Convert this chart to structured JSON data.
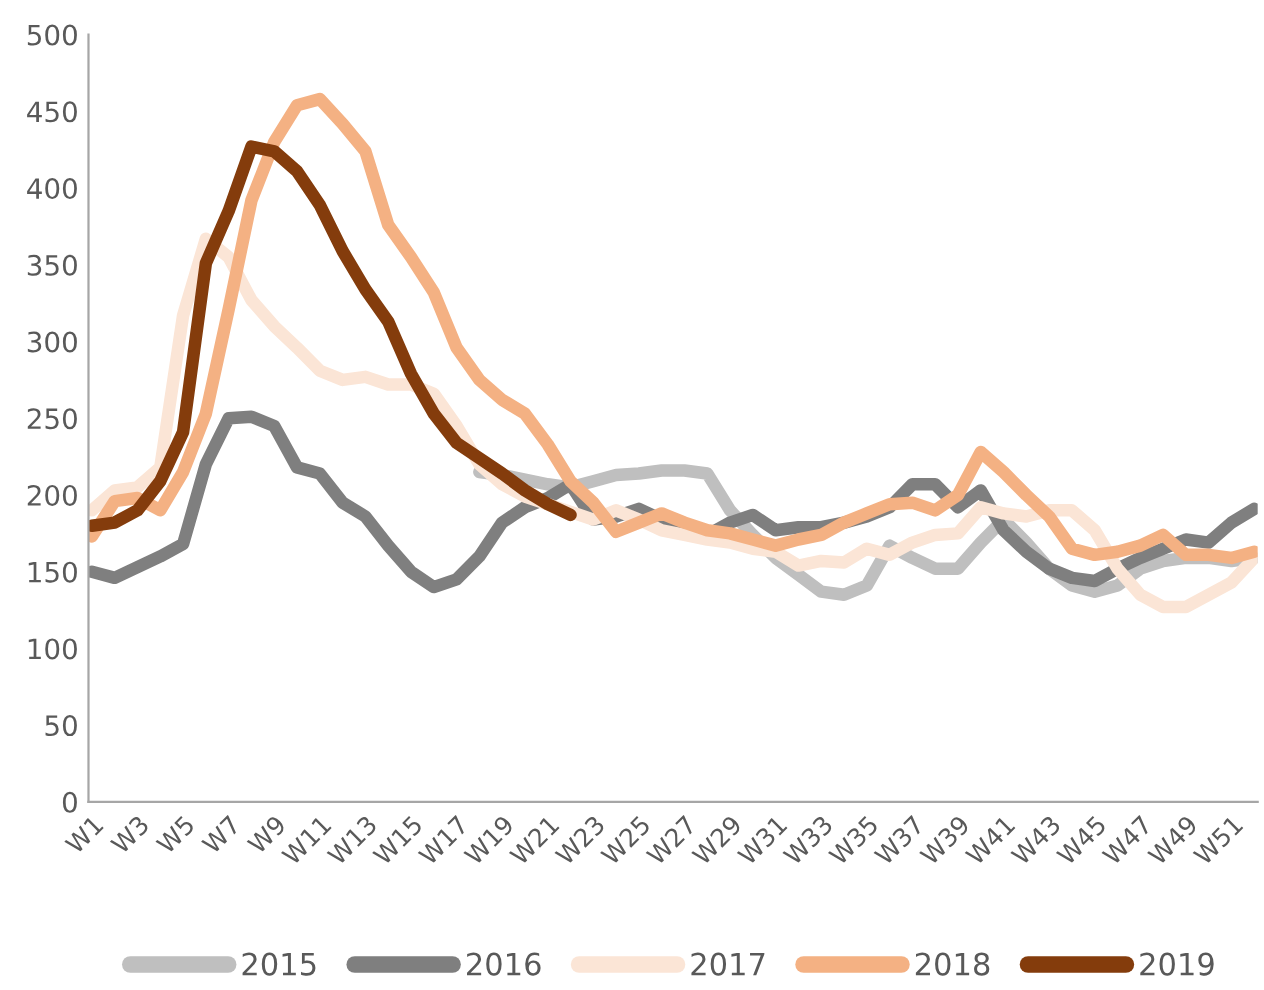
{
  "chart_data": {
    "type": "line",
    "categories": [
      "W1",
      null,
      "W3",
      null,
      "W5",
      null,
      "W7",
      null,
      "W9",
      null,
      "W11",
      null,
      "W13",
      null,
      "W15",
      null,
      "W17",
      null,
      "W19",
      null,
      "W21",
      null,
      "W23",
      null,
      "W25",
      null,
      "W27",
      null,
      "W29",
      null,
      "W31",
      null,
      "W33",
      null,
      "W35",
      null,
      "W37",
      null,
      "W39",
      null,
      "W41",
      null,
      "W43",
      null,
      "W45",
      null,
      "W47",
      null,
      "W49",
      null,
      "W51",
      null
    ],
    "series": [
      {
        "name": "2015",
        "color": "#bfbfbf",
        "values": [
          null,
          null,
          null,
          null,
          null,
          null,
          null,
          null,
          null,
          null,
          null,
          null,
          null,
          null,
          null,
          null,
          null,
          215,
          213,
          210,
          207,
          205,
          209,
          213,
          214,
          216,
          216,
          214,
          190,
          174,
          159,
          148,
          137,
          135,
          141,
          167,
          159,
          152,
          152,
          169,
          184,
          169,
          152,
          141,
          137,
          141,
          152,
          157,
          159,
          159,
          157,
          159
        ]
      },
      {
        "name": "2016",
        "color": "#7f7f7f",
        "values": [
          150,
          146,
          153,
          160,
          168,
          220,
          250,
          251,
          245,
          218,
          214,
          195,
          186,
          167,
          150,
          140,
          145,
          160,
          182,
          192,
          198,
          207,
          184,
          186,
          191,
          184,
          177,
          174,
          182,
          187,
          177,
          179,
          179,
          182,
          186,
          192,
          207,
          207,
          192,
          203,
          177,
          163,
          152,
          146,
          144,
          152,
          159,
          165,
          171,
          169,
          182,
          191
        ]
      },
      {
        "name": "2017",
        "color": "#fbe5d6",
        "values": [
          190,
          203,
          205,
          218,
          317,
          367,
          355,
          327,
          310,
          296,
          281,
          275,
          277,
          272,
          272,
          266,
          245,
          220,
          207,
          199,
          194,
          189,
          184,
          190,
          184,
          177,
          174,
          171,
          169,
          165,
          163,
          154,
          157,
          156,
          165,
          161,
          169,
          174,
          175,
          192,
          188,
          186,
          190,
          190,
          177,
          152,
          135,
          127,
          127,
          135,
          143,
          159
        ]
      },
      {
        "name": "2018",
        "color": "#f4b183",
        "values": [
          173,
          196,
          198,
          190,
          215,
          253,
          321,
          392,
          430,
          454,
          458,
          442,
          424,
          376,
          355,
          332,
          296,
          275,
          262,
          253,
          233,
          209,
          195,
          176,
          182,
          188,
          182,
          177,
          175,
          171,
          167,
          171,
          174,
          182,
          188,
          194,
          195,
          190,
          200,
          228,
          215,
          200,
          186,
          165,
          161,
          163,
          167,
          174,
          161,
          161,
          159,
          163
        ]
      },
      {
        "name": "2019",
        "color": "#843c0c",
        "values": [
          180,
          182,
          190,
          209,
          241,
          351,
          385,
          427,
          424,
          411,
          389,
          359,
          334,
          313,
          279,
          253,
          234,
          224,
          214,
          203,
          194,
          187,
          null,
          null,
          null,
          null,
          null,
          null,
          null,
          null,
          null,
          null,
          null,
          null,
          null,
          null,
          null,
          null,
          null,
          null,
          null,
          null,
          null,
          null,
          null,
          null,
          null,
          null,
          null,
          null,
          null,
          null
        ]
      }
    ],
    "ylim": [
      0,
      500
    ],
    "yticks": [
      0,
      50,
      100,
      150,
      200,
      250,
      300,
      350,
      400,
      450,
      500
    ],
    "grid": false,
    "legend": "bottom",
    "line_style": "solid",
    "marker": "none"
  }
}
